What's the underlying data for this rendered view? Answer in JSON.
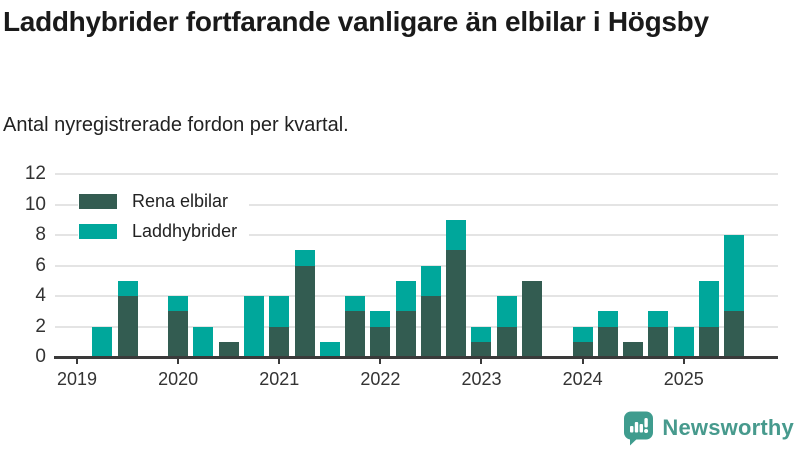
{
  "title": "Laddhybrider fortfarande vanligare än elbilar i Högsby",
  "subtitle": "Antal nyregistrerade fordon per kvartal.",
  "legend": [
    {
      "label": "Rena elbilar",
      "color": "#335c51"
    },
    {
      "label": "Laddhybrider",
      "color": "#00a79b"
    }
  ],
  "footer": {
    "brand": "Newsworthy",
    "brand_color": "#479a8d",
    "icon": "newsworthy-bar-chart-bubble-icon"
  },
  "chart_data": {
    "type": "bar",
    "stacked": true,
    "title": "Laddhybrider fortfarande vanligare än elbilar i Högsby",
    "subtitle": "Antal nyregistrerade fordon per kvartal.",
    "xlabel": "",
    "ylabel": "",
    "ylim": [
      0,
      12
    ],
    "y_ticks": [
      0,
      2,
      4,
      6,
      8,
      10,
      12
    ],
    "grid": true,
    "legend_position": "top-left-inside",
    "x_tick_labels": [
      "2019",
      "2020",
      "2021",
      "2022",
      "2023",
      "2024",
      "2025"
    ],
    "quarters": [
      "2019 Q1",
      "2019 Q2",
      "2019 Q3",
      "2019 Q4",
      "2020 Q1",
      "2020 Q2",
      "2020 Q3",
      "2020 Q4",
      "2021 Q1",
      "2021 Q2",
      "2021 Q3",
      "2021 Q4",
      "2022 Q1",
      "2022 Q2",
      "2022 Q3",
      "2022 Q4",
      "2023 Q1",
      "2023 Q2",
      "2023 Q3",
      "2023 Q4",
      "2024 Q1",
      "2024 Q2",
      "2024 Q3",
      "2024 Q4",
      "2025 Q1",
      "2025 Q2",
      "2025 Q3"
    ],
    "series": [
      {
        "name": "Rena elbilar",
        "color": "#335c51",
        "values": [
          0,
          0,
          4,
          0,
          3,
          0,
          1,
          0,
          2,
          6,
          0,
          3,
          2,
          3,
          4,
          7,
          1,
          2,
          5,
          0,
          1,
          2,
          1,
          2,
          0,
          2,
          3
        ]
      },
      {
        "name": "Laddhybrider",
        "color": "#00a79b",
        "values": [
          0,
          2,
          1,
          0,
          1,
          2,
          0,
          4,
          2,
          1,
          1,
          1,
          1,
          2,
          2,
          2,
          1,
          2,
          0,
          0,
          1,
          1,
          0,
          1,
          2,
          3,
          5
        ]
      }
    ]
  }
}
